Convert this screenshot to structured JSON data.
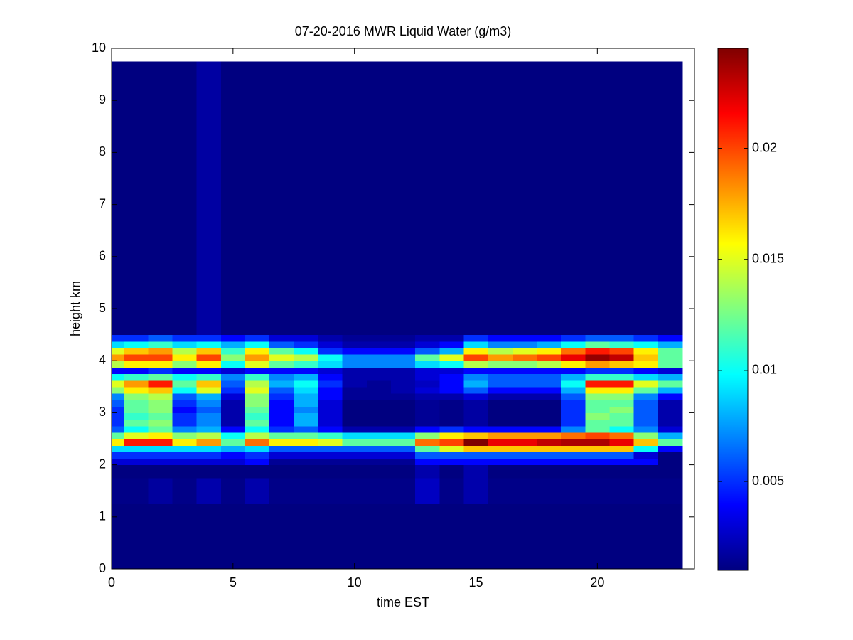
{
  "chart_data": {
    "type": "heatmap",
    "title": "07-20-2016 MWR Liquid Water (g/m3)",
    "x_label": "time EST",
    "y_label": "height km",
    "colormap": "jet",
    "xlim": [
      0,
      24
    ],
    "ylim": [
      0,
      10
    ],
    "xticks": [
      0,
      5,
      10,
      15,
      20
    ],
    "yticks": [
      0,
      1,
      2,
      3,
      4,
      5,
      6,
      7,
      8,
      9,
      10
    ],
    "clim": [
      0.001,
      0.0245
    ],
    "cticks": [
      0.005,
      0.01,
      0.015,
      0.02
    ],
    "x_edges": [
      0,
      0.5,
      1.5,
      2.5,
      3.5,
      4.5,
      5.5,
      6.5,
      7.5,
      8.5,
      9.5,
      10.5,
      11.5,
      12.5,
      13.5,
      14.5,
      15.5,
      16.5,
      17.5,
      18.5,
      19.5,
      20.5,
      21.5,
      22.5,
      23.5
    ],
    "y_edges": [
      0,
      1.25,
      1.75,
      2.0,
      2.125,
      2.25,
      2.375,
      2.5,
      2.625,
      2.75,
      2.875,
      3.0,
      3.125,
      3.25,
      3.375,
      3.5,
      3.625,
      3.75,
      3.875,
      4.0,
      4.125,
      4.25,
      4.375,
      4.5,
      9.75
    ],
    "values": [
      [
        0.001,
        0.001,
        0.001,
        0.001,
        0.001,
        0.001,
        0.001,
        0.001,
        0.001,
        0.001,
        0.001,
        0.001,
        0.001,
        0.001,
        0.001,
        0.001,
        0.001,
        0.001,
        0.001,
        0.001,
        0.001,
        0.001,
        0.001,
        0.001
      ],
      [
        0.0012,
        0.0012,
        0.0017,
        0.0012,
        0.002,
        0.0012,
        0.002,
        0.0012,
        0.0012,
        0.0012,
        0.0012,
        0.0012,
        0.0012,
        0.0025,
        0.0012,
        0.002,
        0.0012,
        0.0012,
        0.0012,
        0.0012,
        0.0012,
        0.0012,
        0.0012,
        0.0012
      ],
      [
        0.001,
        0.001,
        0.001,
        0.001,
        0.001,
        0.001,
        0.001,
        0.001,
        0.001,
        0.001,
        0.001,
        0.001,
        0.001,
        0.002,
        0.001,
        0.002,
        0.001,
        0.001,
        0.001,
        0.001,
        0.001,
        0.001,
        0.001,
        0.001
      ],
      [
        0.003,
        0.003,
        0.003,
        0.003,
        0.003,
        0.003,
        0.004,
        0.0015,
        0.0015,
        0.0015,
        0.0015,
        0.0015,
        0.0015,
        0.004,
        0.004,
        0.004,
        0.004,
        0.004,
        0.004,
        0.004,
        0.004,
        0.004,
        0.004,
        0.001
      ],
      [
        0.005,
        0.005,
        0.005,
        0.005,
        0.005,
        0.004,
        0.005,
        0.003,
        0.003,
        0.003,
        0.003,
        0.003,
        0.003,
        0.006,
        0.006,
        0.006,
        0.006,
        0.006,
        0.006,
        0.006,
        0.006,
        0.006,
        0.003,
        0.001
      ],
      [
        0.009,
        0.009,
        0.009,
        0.009,
        0.009,
        0.008,
        0.009,
        0.006,
        0.006,
        0.006,
        0.006,
        0.006,
        0.006,
        0.012,
        0.015,
        0.017,
        0.017,
        0.017,
        0.017,
        0.017,
        0.017,
        0.017,
        0.01,
        0.004
      ],
      [
        0.016,
        0.021,
        0.021,
        0.016,
        0.018,
        0.012,
        0.019,
        0.016,
        0.016,
        0.015,
        0.012,
        0.012,
        0.012,
        0.019,
        0.02,
        0.0245,
        0.022,
        0.022,
        0.023,
        0.0235,
        0.0235,
        0.022,
        0.017,
        0.012
      ],
      [
        0.012,
        0.015,
        0.016,
        0.013,
        0.014,
        0.01,
        0.014,
        0.012,
        0.012,
        0.011,
        0.009,
        0.009,
        0.009,
        0.013,
        0.016,
        0.017,
        0.018,
        0.018,
        0.018,
        0.019,
        0.02,
        0.019,
        0.013,
        0.008
      ],
      [
        0.006,
        0.01,
        0.012,
        0.007,
        0.008,
        0.004,
        0.01,
        0.005,
        0.006,
        0.004,
        0.002,
        0.002,
        0.002,
        0.004,
        0.005,
        0.004,
        0.004,
        0.004,
        0.004,
        0.007,
        0.012,
        0.01,
        0.007,
        0.003
      ],
      [
        0.005,
        0.012,
        0.013,
        0.005,
        0.007,
        0.002,
        0.012,
        0.004,
        0.008,
        0.003,
        0.001,
        0.001,
        0.001,
        0.0015,
        0.0012,
        0.0018,
        0.001,
        0.001,
        0.001,
        0.005,
        0.012,
        0.012,
        0.006,
        0.002
      ],
      [
        0.005,
        0.011,
        0.012,
        0.005,
        0.007,
        0.002,
        0.011,
        0.004,
        0.008,
        0.003,
        0.001,
        0.001,
        0.001,
        0.0015,
        0.0012,
        0.0018,
        0.001,
        0.001,
        0.001,
        0.005,
        0.013,
        0.012,
        0.006,
        0.002
      ],
      [
        0.005,
        0.012,
        0.013,
        0.004,
        0.006,
        0.002,
        0.012,
        0.004,
        0.007,
        0.003,
        0.001,
        0.001,
        0.001,
        0.0015,
        0.0012,
        0.0018,
        0.001,
        0.001,
        0.001,
        0.005,
        0.012,
        0.013,
        0.006,
        0.002
      ],
      [
        0.006,
        0.012,
        0.013,
        0.005,
        0.007,
        0.002,
        0.013,
        0.004,
        0.008,
        0.003,
        0.001,
        0.001,
        0.001,
        0.0015,
        0.0012,
        0.0018,
        0.001,
        0.001,
        0.001,
        0.005,
        0.012,
        0.012,
        0.006,
        0.002
      ],
      [
        0.007,
        0.013,
        0.014,
        0.006,
        0.008,
        0.003,
        0.013,
        0.005,
        0.008,
        0.004,
        0.0015,
        0.0015,
        0.0015,
        0.002,
        0.002,
        0.003,
        0.002,
        0.002,
        0.002,
        0.006,
        0.013,
        0.013,
        0.007,
        0.004
      ],
      [
        0.013,
        0.016,
        0.017,
        0.01,
        0.015,
        0.005,
        0.015,
        0.006,
        0.009,
        0.004,
        0.0015,
        0.0015,
        0.002,
        0.003,
        0.004,
        0.006,
        0.004,
        0.004,
        0.004,
        0.008,
        0.016,
        0.016,
        0.012,
        0.008
      ],
      [
        0.015,
        0.018,
        0.021,
        0.012,
        0.017,
        0.006,
        0.014,
        0.008,
        0.01,
        0.005,
        0.002,
        0.0015,
        0.002,
        0.0025,
        0.004,
        0.008,
        0.006,
        0.006,
        0.006,
        0.01,
        0.021,
        0.021,
        0.015,
        0.012
      ],
      [
        0.01,
        0.011,
        0.012,
        0.01,
        0.011,
        0.007,
        0.011,
        0.007,
        0.008,
        0.004,
        0.002,
        0.002,
        0.002,
        0.003,
        0.004,
        0.007,
        0.006,
        0.006,
        0.006,
        0.008,
        0.011,
        0.011,
        0.009,
        0.008
      ],
      [
        0.004,
        0.004,
        0.005,
        0.004,
        0.004,
        0.003,
        0.004,
        0.004,
        0.004,
        0.003,
        0.002,
        0.002,
        0.002,
        0.003,
        0.003,
        0.004,
        0.004,
        0.004,
        0.004,
        0.004,
        0.005,
        0.005,
        0.004,
        0.003
      ],
      [
        0.014,
        0.016,
        0.016,
        0.013,
        0.016,
        0.01,
        0.015,
        0.012,
        0.011,
        0.009,
        0.007,
        0.007,
        0.007,
        0.009,
        0.01,
        0.014,
        0.013,
        0.013,
        0.014,
        0.016,
        0.018,
        0.017,
        0.016,
        0.012
      ],
      [
        0.018,
        0.02,
        0.02,
        0.016,
        0.02,
        0.013,
        0.018,
        0.015,
        0.014,
        0.01,
        0.007,
        0.007,
        0.007,
        0.012,
        0.015,
        0.02,
        0.018,
        0.019,
        0.02,
        0.022,
        0.024,
        0.023,
        0.017,
        0.012
      ],
      [
        0.015,
        0.017,
        0.018,
        0.014,
        0.017,
        0.011,
        0.016,
        0.012,
        0.01,
        0.005,
        0.004,
        0.004,
        0.004,
        0.006,
        0.008,
        0.016,
        0.014,
        0.015,
        0.016,
        0.019,
        0.021,
        0.02,
        0.016,
        0.012
      ],
      [
        0.009,
        0.01,
        0.011,
        0.009,
        0.01,
        0.008,
        0.01,
        0.006,
        0.005,
        0.003,
        0.002,
        0.002,
        0.002,
        0.003,
        0.004,
        0.009,
        0.007,
        0.007,
        0.008,
        0.01,
        0.012,
        0.011,
        0.01,
        0.008
      ],
      [
        0.005,
        0.005,
        0.006,
        0.005,
        0.005,
        0.004,
        0.005,
        0.003,
        0.003,
        0.002,
        0.0015,
        0.0015,
        0.0015,
        0.002,
        0.002,
        0.005,
        0.004,
        0.004,
        0.004,
        0.005,
        0.006,
        0.006,
        0.005,
        0.004
      ],
      [
        0.001,
        0.001,
        0.001,
        0.001,
        0.0018,
        0.001,
        0.001,
        0.001,
        0.001,
        0.001,
        0.001,
        0.001,
        0.001,
        0.001,
        0.001,
        0.001,
        0.001,
        0.001,
        0.001,
        0.001,
        0.001,
        0.001,
        0.001,
        0.001
      ]
    ]
  }
}
